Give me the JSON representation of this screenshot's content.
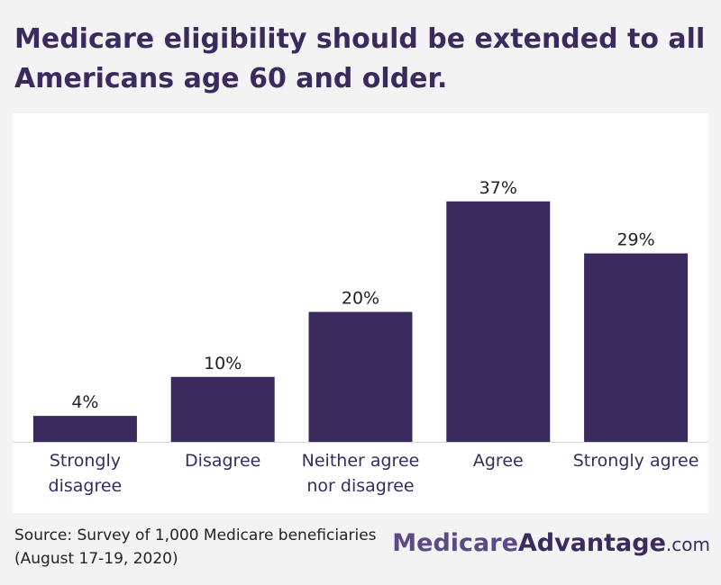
{
  "title": "Medicare eligibility should be extended to all Americans age 60 and older.",
  "source": {
    "line1": "Source: Survey of 1,000 Medicare beneficiaries",
    "line2": "(August 17-19, 2020)"
  },
  "logo": {
    "part1": "Medicare",
    "part2": "Advantage",
    "part3": ".com"
  },
  "colors": {
    "bar": "#3b2a5e",
    "title": "#3b2a5e",
    "background": "#f3f3f3",
    "panel": "#ffffff"
  },
  "chart_data": {
    "type": "bar",
    "categories": [
      [
        "Strongly",
        "disagree"
      ],
      [
        "Disagree"
      ],
      [
        "Neither agree",
        "nor disagree"
      ],
      [
        "Agree"
      ],
      [
        "Strongly agree"
      ]
    ],
    "values": [
      4,
      10,
      20,
      37,
      29
    ],
    "value_labels": [
      "4%",
      "10%",
      "20%",
      "37%",
      "29%"
    ],
    "unit": "%",
    "ylim": [
      0,
      45
    ],
    "grid": false,
    "legend": "none"
  }
}
